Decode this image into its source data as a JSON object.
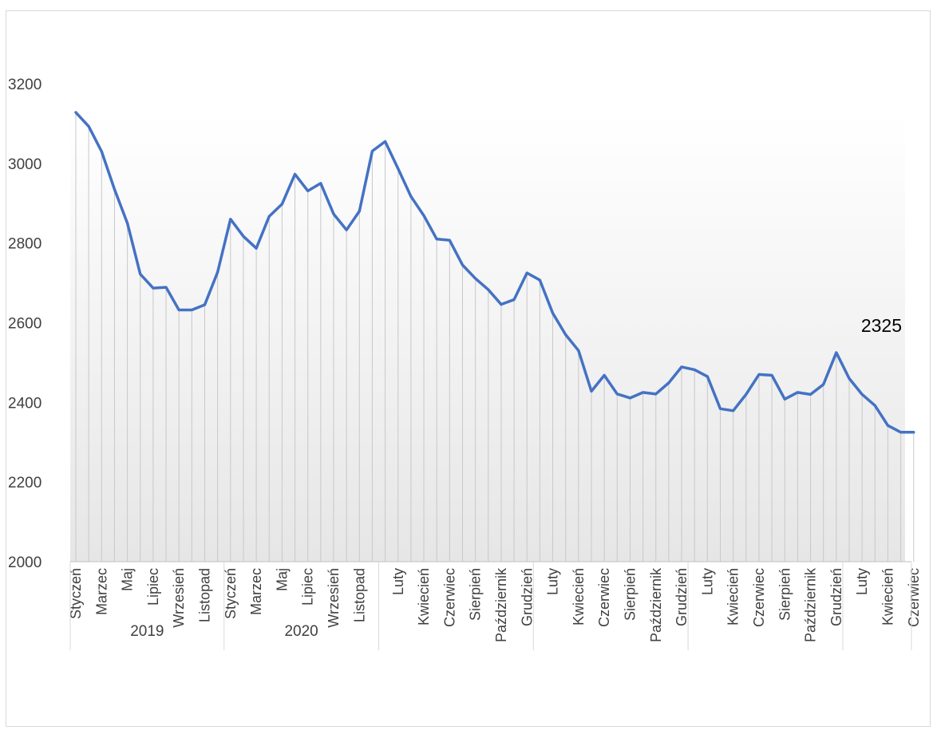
{
  "chart_data": {
    "type": "area",
    "title": "",
    "xlabel": "",
    "ylabel": "",
    "ylim": [
      2000,
      3200
    ],
    "yticks": [
      2000,
      2200,
      2400,
      2600,
      2800,
      3000,
      3200
    ],
    "grid": false,
    "legend": "none",
    "line_color": "#4472c4",
    "drop_line_color": "#c8c8c8",
    "annotation": {
      "text": "2325",
      "index": 65
    },
    "year_groups": [
      {
        "label": "2019",
        "start": 0,
        "end": 11
      },
      {
        "label": "2020",
        "start": 12,
        "end": 23
      },
      {
        "label": "",
        "start": 24,
        "end": 35
      },
      {
        "label": "",
        "start": 36,
        "end": 47
      },
      {
        "label": "",
        "start": 48,
        "end": 59
      },
      {
        "label": "",
        "start": 60,
        "end": 65
      }
    ],
    "categories": [
      "Styczeń",
      "Luty",
      "Marzec",
      "Kwiecień",
      "Maj",
      "Czerwiec",
      "Lipiec",
      "Sierpień",
      "Wrzesień",
      "Październik",
      "Listopad",
      "Grudzień",
      "Styczeń",
      "Luty",
      "Marzec",
      "Kwiecień",
      "Maj",
      "Czerwiec",
      "Lipiec",
      "Sierpień",
      "Wrzesień",
      "Październik",
      "Listopad",
      "Grudzień",
      "Styczeń",
      "Luty",
      "Marzec",
      "Kwiecień",
      "Maj",
      "Czerwiec",
      "Lipiec",
      "Sierpień",
      "Wrzesień",
      "Październik",
      "Listopad",
      "Grudzień",
      "Styczeń",
      "Luty",
      "Marzec",
      "Kwiecień",
      "Maj",
      "Czerwiec",
      "Lipiec",
      "Sierpień",
      "Wrzesień",
      "Październik",
      "Listopad",
      "Grudzień",
      "Styczeń",
      "Luty",
      "Marzec",
      "Kwiecień",
      "Maj",
      "Czerwiec",
      "Lipiec",
      "Sierpień",
      "Wrzesień",
      "Październik",
      "Listopad",
      "Grudzień",
      "Styczeń",
      "Luty",
      "Marzec",
      "Kwiecień",
      "Maj",
      "Czerwiec"
    ],
    "visible_tick_labels": [
      "Styczeń",
      "Marzec",
      "Maj",
      "Lipiec",
      "Wrzesień",
      "Listopad",
      "Styczeń",
      "Marzec",
      "Maj",
      "Lipiec",
      "Wrzesień",
      "Listopad",
      "Luty",
      "Kwiecień",
      "Czerwiec",
      "Sierpień",
      "Październik",
      "Grudzień",
      "Luty",
      "Kwiecień",
      "Czerwiec",
      "Sierpień",
      "Październik",
      "Grudzień",
      "Luty",
      "Kwiecień",
      "Czerwiec",
      "Sierpień",
      "Październik",
      "Grudzień",
      "Luty",
      "Kwiecień",
      "Czerwiec"
    ],
    "values": [
      3128,
      3093,
      3030,
      2935,
      2850,
      2722,
      2687,
      2689,
      2632,
      2632,
      2645,
      2727,
      2860,
      2817,
      2787,
      2867,
      2898,
      2973,
      2931,
      2950,
      2873,
      2833,
      2880,
      3031,
      3055,
      2987,
      2917,
      2869,
      2810,
      2807,
      2745,
      2711,
      2683,
      2646,
      2658,
      2725,
      2707,
      2624,
      2570,
      2530,
      2428,
      2468,
      2421,
      2411,
      2425,
      2421,
      2449,
      2489,
      2482,
      2465,
      2384,
      2379,
      2420,
      2470,
      2468,
      2408,
      2425,
      2420,
      2445,
      2525,
      2460,
      2420,
      2392,
      2342,
      2325,
      2325
    ]
  }
}
